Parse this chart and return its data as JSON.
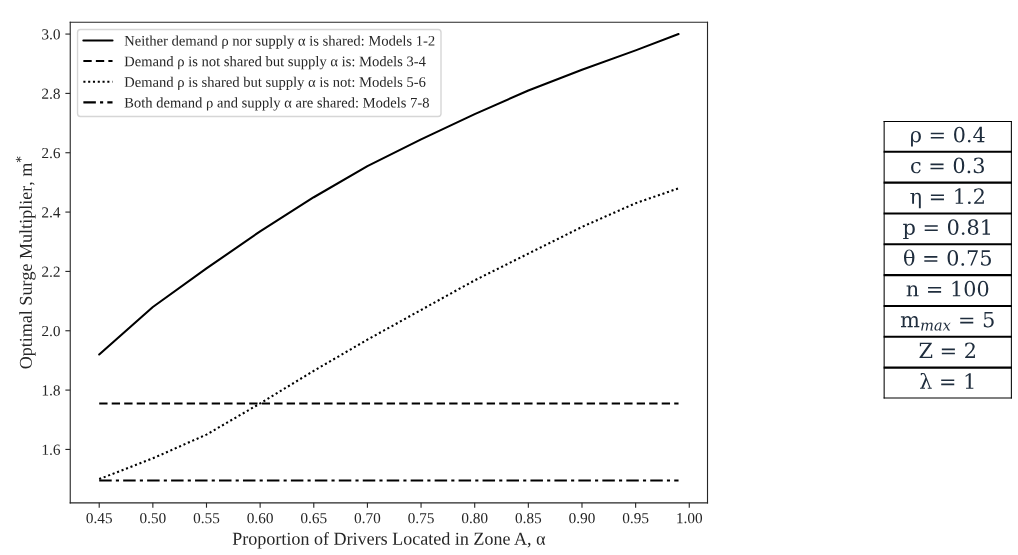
{
  "chart_data": [
    {
      "type": "line",
      "xlabel": "Proportion of Drivers Located in Zone A, α",
      "ylabel": "Optimal Surge Multiplier, m$^{*}$",
      "x": [
        0.45,
        0.5,
        0.55,
        0.6,
        0.65,
        0.7,
        0.75,
        0.8,
        0.85,
        0.9,
        0.95,
        0.99
      ],
      "series": [
        {
          "name": "Neither demand ρ nor supply α is shared: Models 1-2",
          "color": "#000000",
          "line_style": "solid",
          "values": [
            1.92,
            2.08,
            2.21,
            2.335,
            2.45,
            2.555,
            2.645,
            2.73,
            2.81,
            2.88,
            2.945,
            3.0
          ]
        },
        {
          "name": "Demand ρ is not shared but supply α is: Models 3-4",
          "color": "#000000",
          "line_style": "dashed",
          "values": [
            1.755,
            1.755,
            1.755,
            1.755,
            1.755,
            1.755,
            1.755,
            1.755,
            1.755,
            1.755,
            1.755,
            1.755
          ]
        },
        {
          "name": "Demand ρ is shared but supply α is not: Models 5-6",
          "color": "#000000",
          "line_style": "dotted",
          "values": [
            1.5,
            1.57,
            1.65,
            1.755,
            1.865,
            1.97,
            2.07,
            2.17,
            2.26,
            2.35,
            2.43,
            2.48
          ]
        },
        {
          "name": "Both demand ρ and supply α are shared: Models 7-8",
          "color": "#000000",
          "line_style": "dashdot",
          "values": [
            1.495,
            1.495,
            1.495,
            1.495,
            1.495,
            1.495,
            1.495,
            1.495,
            1.495,
            1.495,
            1.495,
            1.495
          ]
        }
      ],
      "xlim": [
        0.423,
        1.017
      ],
      "ylim": [
        1.42,
        3.04
      ],
      "xticks": [
        {
          "value": 0.45,
          "label": "0.45"
        },
        {
          "value": 0.5,
          "label": "0.50"
        },
        {
          "value": 0.55,
          "label": "0.55"
        },
        {
          "value": 0.6,
          "label": "0.60"
        },
        {
          "value": 0.65,
          "label": "0.65"
        },
        {
          "value": 0.7,
          "label": "0.70"
        },
        {
          "value": 0.75,
          "label": "0.75"
        },
        {
          "value": 0.8,
          "label": "0.80"
        },
        {
          "value": 0.85,
          "label": "0.85"
        },
        {
          "value": 0.9,
          "label": "0.90"
        },
        {
          "value": 0.95,
          "label": "0.95"
        },
        {
          "value": 1.0,
          "label": "1.00"
        }
      ],
      "yticks": [
        1.6,
        1.8,
        {
          "value": 2.0,
          "label": "2.0"
        },
        2.2,
        2.4,
        2.6,
        2.8,
        {
          "value": 3.0,
          "label": "3.0"
        }
      ],
      "grid": false,
      "legend": "top left"
    },
    {
      "type": "other",
      "annotations": [
        "ρ = 0.4",
        "c = 0.3",
        "η = 1.2",
        "p = 0.81",
        "θ = 0.75",
        "n = 100",
        "m$_{max}$ = 5",
        "Z = 2",
        "λ = 1"
      ]
    }
  ]
}
